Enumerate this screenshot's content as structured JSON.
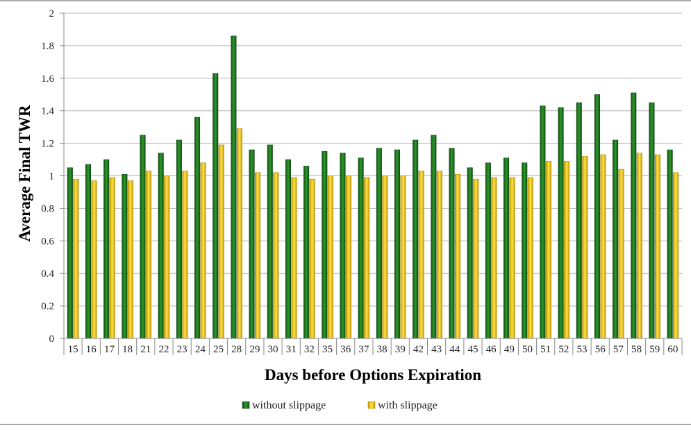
{
  "chart_data": {
    "type": "bar",
    "xlabel": "Days before Options Expiration",
    "ylabel": "Average Final TWR",
    "ylim": [
      0,
      2
    ],
    "y_ticks": [
      "0",
      "0.2",
      "0.4",
      "0.6",
      "0.8",
      "1",
      "1.2",
      "1.4",
      "1.6",
      "1.8",
      "2"
    ],
    "grid": true,
    "legend_position": "bottom",
    "categories": [
      "15",
      "16",
      "17",
      "18",
      "21",
      "22",
      "23",
      "24",
      "25",
      "28",
      "29",
      "30",
      "31",
      "32",
      "35",
      "36",
      "37",
      "38",
      "39",
      "42",
      "43",
      "44",
      "45",
      "46",
      "49",
      "50",
      "51",
      "52",
      "53",
      "56",
      "57",
      "58",
      "59",
      "60"
    ],
    "series": [
      {
        "name": "without slippage",
        "color": "#1e7a1e",
        "values": [
          1.05,
          1.07,
          1.1,
          1.01,
          1.25,
          1.14,
          1.22,
          1.36,
          1.63,
          1.86,
          1.16,
          1.19,
          1.1,
          1.06,
          1.15,
          1.14,
          1.11,
          1.17,
          1.16,
          1.22,
          1.25,
          1.17,
          1.05,
          1.08,
          1.11,
          1.08,
          1.43,
          1.42,
          1.45,
          1.5,
          1.22,
          1.51,
          1.45,
          1.16
        ]
      },
      {
        "name": "with slippage",
        "color": "#f2c200",
        "values": [
          0.98,
          0.97,
          0.99,
          0.97,
          1.03,
          1.0,
          1.03,
          1.08,
          1.19,
          1.29,
          1.02,
          1.02,
          0.99,
          0.98,
          1.0,
          1.0,
          0.99,
          1.0,
          1.0,
          1.03,
          1.03,
          1.01,
          0.98,
          0.99,
          0.99,
          0.99,
          1.09,
          1.09,
          1.12,
          1.13,
          1.04,
          1.14,
          1.13,
          1.02
        ]
      }
    ]
  }
}
